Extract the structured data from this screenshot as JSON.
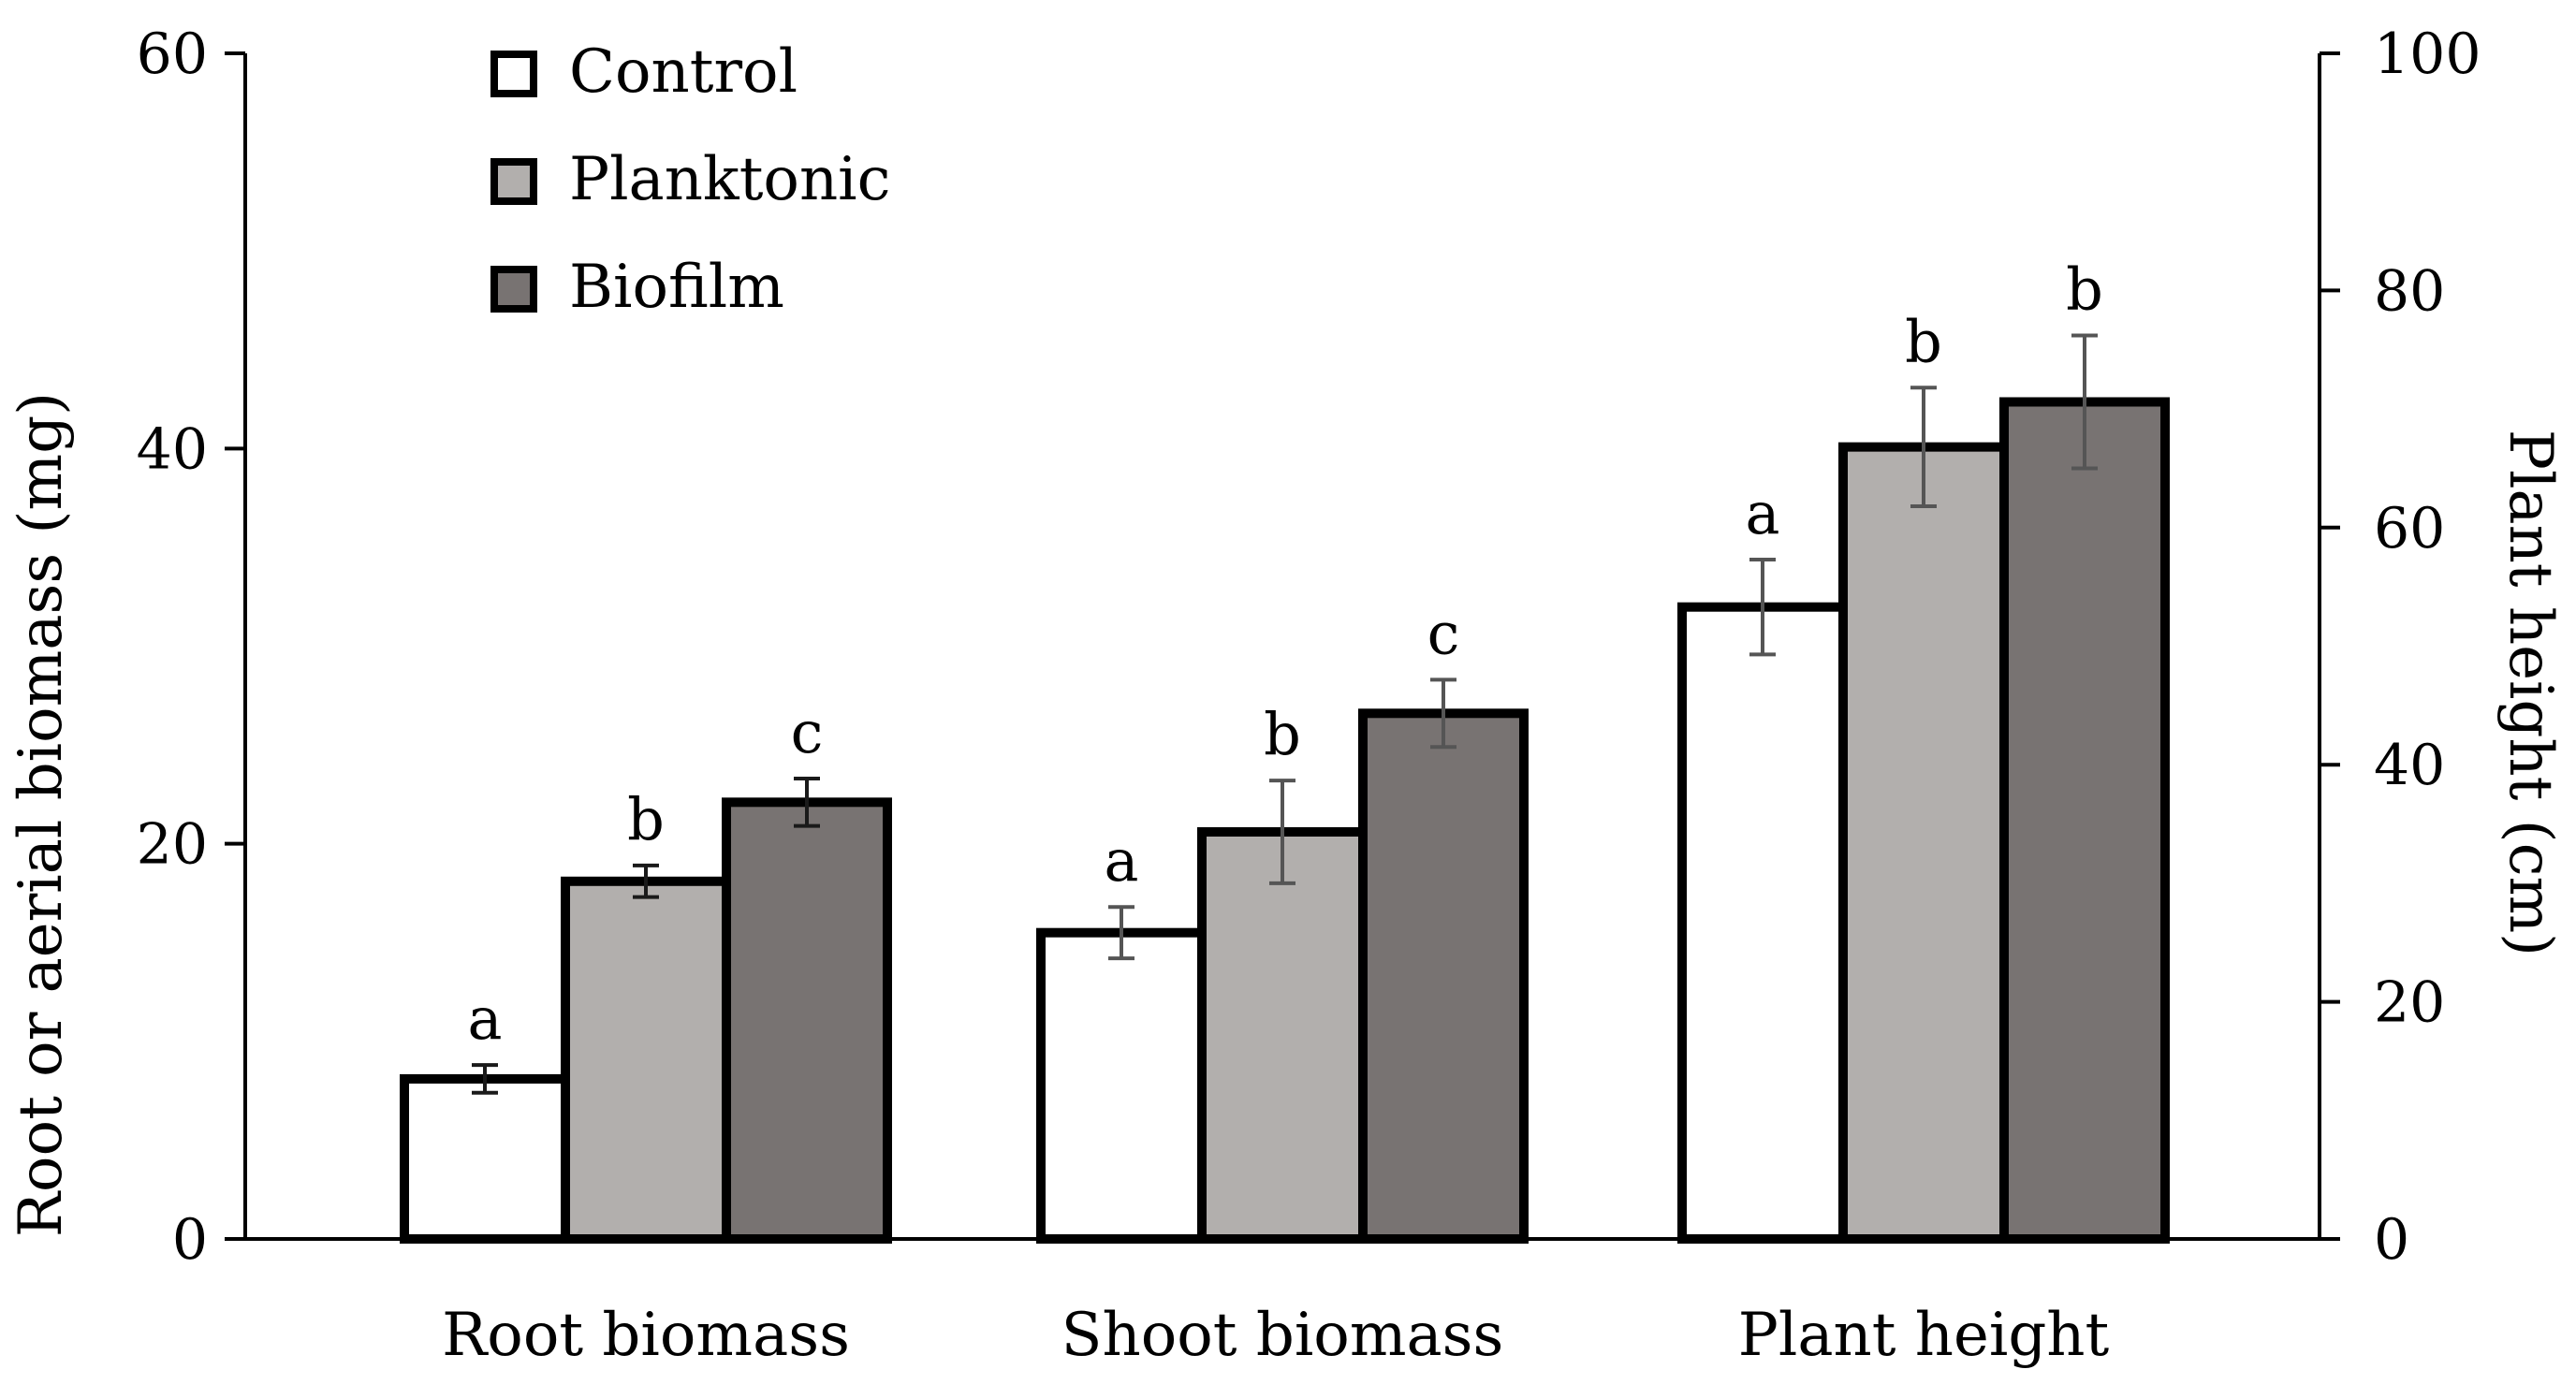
{
  "chart_data": {
    "type": "bar",
    "categories": [
      "Root biomass",
      "Shoot biomass",
      "Plant height"
    ],
    "series": [
      {
        "name": "Control",
        "color": "#ffffff",
        "values": [
          8.1,
          15.5,
          53.3
        ],
        "errors": [
          0.7,
          1.3,
          4.0
        ],
        "letters": [
          "a",
          "a",
          "a"
        ]
      },
      {
        "name": "Planktonic",
        "color": "#b2afad",
        "values": [
          18.1,
          20.6,
          66.8
        ],
        "errors": [
          0.8,
          2.6,
          5.0
        ],
        "letters": [
          "b",
          "b",
          "b"
        ]
      },
      {
        "name": "Biofilm",
        "color": "#787372",
        "values": [
          22.1,
          26.6,
          70.6
        ],
        "errors": [
          1.2,
          1.7,
          5.6
        ],
        "letters": [
          "c",
          "c",
          "b"
        ]
      }
    ],
    "category_axis": [
      "left",
      "left",
      "right"
    ],
    "left_axis": {
      "label": "Root or aerial biomass (mg)",
      "ylim": [
        0,
        60
      ],
      "ticks": [
        "0",
        "20",
        "40",
        "60"
      ]
    },
    "right_axis": {
      "label": "Plant height (cm)",
      "ylim": [
        0,
        100
      ],
      "ticks": [
        "0",
        "20",
        "40",
        "60",
        "80",
        "100"
      ]
    },
    "legend": {
      "position": "top-left",
      "entries": [
        "Control",
        "Planktonic",
        "Biofilm"
      ]
    },
    "grid": false,
    "title": "",
    "xlabel": ""
  }
}
